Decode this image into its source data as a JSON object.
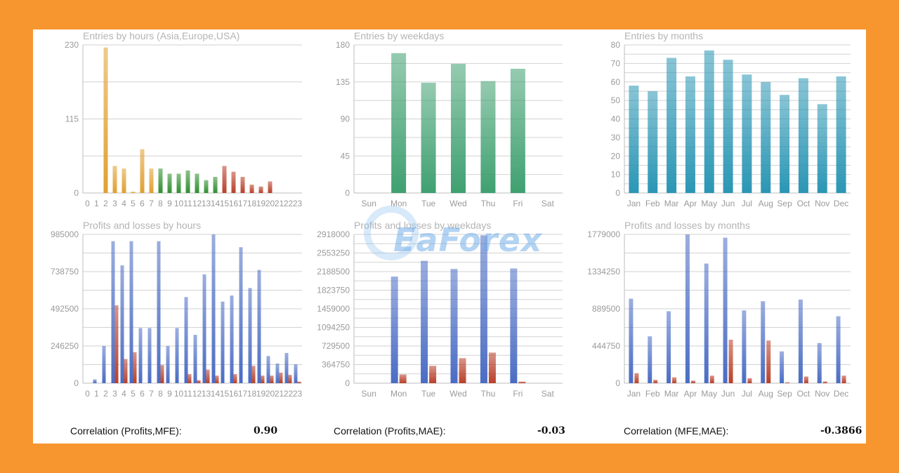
{
  "correlations": [
    {
      "label": "Correlation (Profits,MFE):",
      "value": "0.90"
    },
    {
      "label": "Correlation (Profits,MAE):",
      "value": "-0.03"
    },
    {
      "label": "Correlation (MFE,MAE):",
      "value": "-0.3866"
    }
  ],
  "watermark": "EaForex",
  "colors": {
    "hours_early": "#e0a030",
    "hours_mid": "#2f8f2f",
    "hours_late": "#b8402a",
    "weekdays": "#3fa070",
    "months": "#2a96b4",
    "profit": "#4a6cc4",
    "loss": "#b8402a"
  },
  "chart_data": [
    {
      "type": "bar",
      "title": "Entries by hours (Asia,Europe,USA)",
      "categories": [
        "0",
        "1",
        "2",
        "3",
        "4",
        "5",
        "6",
        "7",
        "8",
        "9",
        "10",
        "11",
        "12",
        "13",
        "14",
        "15",
        "16",
        "17",
        "18",
        "19",
        "20",
        "21",
        "22",
        "23"
      ],
      "values": [
        0,
        0,
        226,
        42,
        38,
        2,
        68,
        38,
        38,
        30,
        30,
        35,
        30,
        20,
        25,
        42,
        33,
        25,
        13,
        10,
        18,
        0,
        0,
        0
      ],
      "ylim": [
        0,
        230
      ],
      "yticks": [
        "0",
        "115",
        "230"
      ]
    },
    {
      "type": "bar",
      "title": "Entries by weekdays",
      "categories": [
        "Sun",
        "Mon",
        "Tue",
        "Wed",
        "Thu",
        "Fri",
        "Sat"
      ],
      "values": [
        0,
        170,
        134,
        157,
        136,
        151,
        0
      ],
      "ylim": [
        0,
        180
      ],
      "yticks": [
        "0",
        "45",
        "90",
        "135",
        "180"
      ]
    },
    {
      "type": "bar",
      "title": "Entries by months",
      "categories": [
        "Jan",
        "Feb",
        "Mar",
        "Apr",
        "May",
        "Jun",
        "Jul",
        "Aug",
        "Sep",
        "Oct",
        "Nov",
        "Dec"
      ],
      "values": [
        58,
        55,
        73,
        63,
        77,
        72,
        64,
        60,
        53,
        62,
        48,
        63
      ],
      "ylim": [
        0,
        80
      ],
      "yticks": [
        "0",
        "10",
        "20",
        "30",
        "40",
        "50",
        "60",
        "70",
        "80"
      ]
    },
    {
      "type": "bar",
      "title": "Profits and losses by hours",
      "categories": [
        "0",
        "1",
        "2",
        "3",
        "4",
        "5",
        "6",
        "7",
        "8",
        "9",
        "10",
        "11",
        "12",
        "13",
        "14",
        "15",
        "16",
        "17",
        "18",
        "19",
        "20",
        "21",
        "22",
        "23"
      ],
      "series": [
        {
          "values": [
            0,
            25000,
            246250,
            940000,
            780000,
            940000,
            365000,
            365000,
            940000,
            246250,
            365000,
            570000,
            320000,
            720000,
            985000,
            540000,
            580000,
            900000,
            630000,
            750000,
            180000,
            130000,
            200000,
            125000
          ]
        },
        {
          "values": [
            0,
            0,
            0,
            515000,
            160000,
            205000,
            0,
            0,
            120000,
            0,
            0,
            60000,
            20000,
            90000,
            50000,
            0,
            60000,
            0,
            115000,
            50000,
            50000,
            70000,
            55000,
            10000
          ]
        }
      ],
      "ylim": [
        0,
        985000
      ],
      "yticks": [
        "0",
        "246250",
        "492500",
        "738750",
        "985000"
      ]
    },
    {
      "type": "bar",
      "title": "Profits and losses by weekdays",
      "categories": [
        "Sun",
        "Mon",
        "Tue",
        "Wed",
        "Thu",
        "Fri",
        "Sat"
      ],
      "series": [
        {
          "values": [
            0,
            2090000,
            2400000,
            2240000,
            2900000,
            2250000,
            0
          ]
        },
        {
          "values": [
            0,
            170000,
            340000,
            490000,
            600000,
            30000,
            0
          ]
        }
      ],
      "ylim": [
        0,
        2918000
      ],
      "yticks": [
        "0",
        "364750",
        "729500",
        "1094250",
        "1459000",
        "1823750",
        "2188500",
        "2553250",
        "2918000"
      ]
    },
    {
      "type": "bar",
      "title": "Profits and losses by months",
      "categories": [
        "Jan",
        "Feb",
        "Mar",
        "Apr",
        "May",
        "Jun",
        "Jul",
        "Aug",
        "Sep",
        "Oct",
        "Nov",
        "Dec"
      ],
      "series": [
        {
          "values": [
            1010000,
            560000,
            860000,
            1779000,
            1430000,
            1740000,
            870000,
            980000,
            380000,
            1000000,
            480000,
            800000
          ]
        },
        {
          "values": [
            120000,
            40000,
            70000,
            30000,
            90000,
            520000,
            60000,
            510000,
            10000,
            80000,
            20000,
            90000
          ]
        }
      ],
      "ylim": [
        0,
        1779000
      ],
      "yticks": [
        "0",
        "444750",
        "889500",
        "1334250",
        "1779000"
      ]
    }
  ]
}
